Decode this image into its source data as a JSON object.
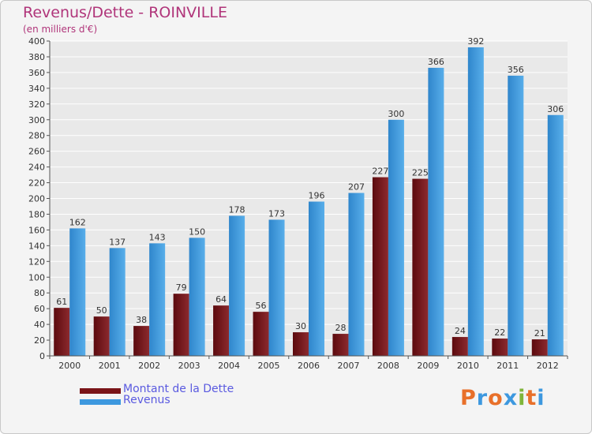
{
  "header": {
    "title": "Revenus/Dette - ROINVILLE",
    "subtitle": "(en milliers d'€)"
  },
  "colors": {
    "dette": "#7a1418",
    "revenus": "#3d98df",
    "grid": "#ffffff",
    "plot_bg": "#e9e9e9",
    "title": "#b0357a",
    "legend_text": "#5a5ae0"
  },
  "legend": {
    "dette_label": "Montant de la Dette",
    "revenus_label": "Revenus"
  },
  "logo": {
    "text": "Proxiti",
    "letters": [
      "P",
      "r",
      "o",
      "x",
      "i",
      "t",
      "i"
    ],
    "letter_colors": [
      "#e8702a",
      "#3d98df",
      "#e8702a",
      "#3d98df",
      "#7fb53a",
      "#e8702a",
      "#3d98df"
    ]
  },
  "chart_data": {
    "type": "bar",
    "categories": [
      "2000",
      "2001",
      "2002",
      "2003",
      "2004",
      "2005",
      "2006",
      "2007",
      "2008",
      "2009",
      "2010",
      "2011",
      "2012"
    ],
    "series": [
      {
        "name": "Montant de la Dette",
        "values": [
          61,
          50,
          38,
          79,
          64,
          56,
          30,
          28,
          227,
          225,
          24,
          22,
          21
        ]
      },
      {
        "name": "Revenus",
        "values": [
          162,
          137,
          143,
          150,
          178,
          173,
          196,
          207,
          300,
          366,
          392,
          356,
          306
        ]
      }
    ],
    "ylim": [
      0,
      400
    ],
    "ytick_step": 20,
    "grid": true,
    "legend_position": "bottom-left"
  }
}
